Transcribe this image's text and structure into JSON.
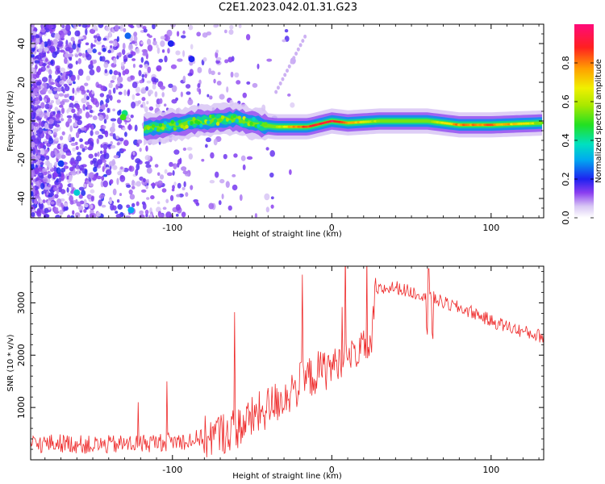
{
  "title": "C2E1.2023.042.01.31.G23",
  "chart_data": [
    {
      "type": "heatmap",
      "xlabel": "Height of straight line (km)",
      "ylabel": "Frequency (Hz)",
      "xlim": [
        -189,
        133
      ],
      "ylim": [
        -50,
        50
      ],
      "xticks": [
        "-100",
        "0",
        "100"
      ],
      "xtick_values": [
        -100,
        0,
        100
      ],
      "yticks": [
        "-40",
        "-20",
        "0",
        "20",
        "40"
      ],
      "ytick_values": [
        -40,
        -20,
        0,
        20,
        40
      ],
      "colorbar": {
        "label": "Normalized spectral amplitude",
        "range": [
          0,
          1
        ],
        "ticks": [
          "0.0",
          "0.2",
          "0.4",
          "0.6",
          "0.8"
        ],
        "tick_values": [
          0.0,
          0.2,
          0.4,
          0.6,
          0.8
        ]
      },
      "signal_trace": {
        "x": [
          -115,
          -100,
          -80,
          -60,
          -45,
          -35,
          -25,
          -15,
          -5,
          0,
          10,
          30,
          60,
          80,
          100,
          133
        ],
        "y": [
          -4,
          -2,
          0,
          1,
          -2,
          -3,
          -3,
          -3,
          -1,
          0,
          -1,
          0,
          0,
          -2,
          -2,
          -1
        ],
        "amplitude": [
          0.4,
          0.45,
          0.55,
          0.5,
          0.45,
          0.6,
          0.8,
          0.9,
          0.95,
          1.0,
          0.85,
          0.6,
          0.55,
          0.85,
          0.9,
          0.6
        ]
      }
    },
    {
      "type": "line",
      "xlabel": "Height of straight line (km)",
      "ylabel": "SNR (10 * v/v)",
      "xlim": [
        -189,
        133
      ],
      "ylim": [
        0,
        3700
      ],
      "xticks": [
        "-100",
        "0",
        "100"
      ],
      "xtick_values": [
        -100,
        0,
        100
      ],
      "yticks": [
        "1000",
        "2000",
        "3000"
      ],
      "ytick_values": [
        1000,
        2000,
        3000
      ],
      "series": [
        {
          "name": "SNR",
          "color": "#ee2a2a",
          "x": [
            -189,
            -170,
            -150,
            -130,
            -110,
            -90,
            -75,
            -60,
            -50,
            -40,
            -30,
            -20,
            -10,
            0,
            10,
            20,
            25,
            27,
            30,
            40,
            50,
            60,
            70,
            80,
            90,
            100,
            110,
            120,
            133
          ],
          "y": [
            300,
            320,
            280,
            300,
            330,
            370,
            450,
            600,
            800,
            1000,
            1200,
            1450,
            1650,
            1800,
            1950,
            2150,
            2200,
            3150,
            3250,
            3300,
            3200,
            3150,
            3000,
            2900,
            2800,
            2650,
            2550,
            2450,
            2350
          ]
        }
      ]
    }
  ]
}
